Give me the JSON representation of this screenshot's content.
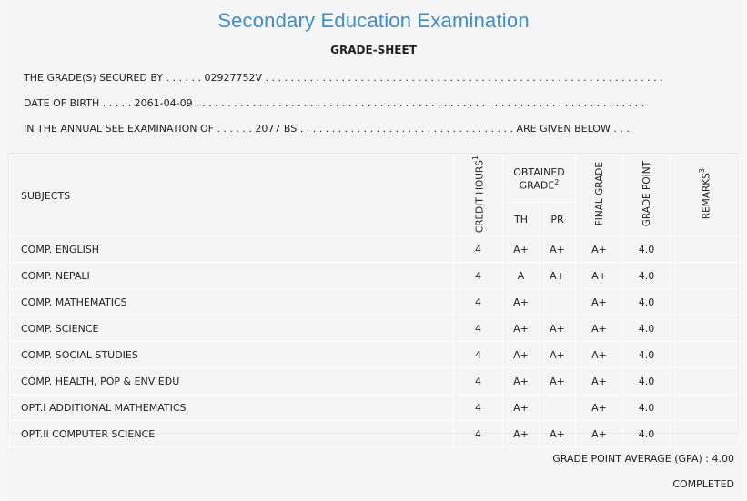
{
  "header": {
    "title": "Secondary Education Examination",
    "subtitle": "GRADE-SHEET"
  },
  "info": {
    "line1": "THE GRADE(S) SECURED BY . . . . . . 02927752V . . . . . . . . . . . . . . . . . . . . . . . . . . . . . . . . . . . . . . . . . . . . . . . . . . . . . . . . . . . . . . .",
    "line2": "DATE OF BIRTH . . . . . 2061-04-09 . . . . . . . . . . . . . . . . . . . . . . . . . . . . . . . . . . . . . . . . . . . . . . . . . . . . . . . . . . . . . . . . . . . . . . .",
    "line3": "IN THE ANNUAL SEE EXAMINATION OF . . . . . . 2077 BS . . . . . . . . . . . . . . . . . . . . . . . . . . . . . . . . . . ARE GIVEN BELOW . . ."
  },
  "table": {
    "headers": {
      "subjects": "SUBJECTS",
      "credit_hours": "CREDIT HOURS",
      "credit_sup": "1",
      "obtained_grade": "OBTAINED GRADE",
      "obtained_sup": "2",
      "th": "TH",
      "pr": "PR",
      "final_grade": "FINAL GRADE",
      "grade_point": "GRADE POINT",
      "remarks": "REMARKS",
      "remarks_sup": "3"
    },
    "rows": [
      {
        "subject": "COMP. ENGLISH",
        "credit": "4",
        "th": "A+",
        "pr": "A+",
        "final": "A+",
        "gp": "4.0",
        "remarks": ""
      },
      {
        "subject": "COMP. NEPALI",
        "credit": "4",
        "th": "A",
        "pr": "A+",
        "final": "A+",
        "gp": "4.0",
        "remarks": ""
      },
      {
        "subject": "COMP. MATHEMATICS",
        "credit": "4",
        "th": "A+",
        "pr": "",
        "final": "A+",
        "gp": "4.0",
        "remarks": ""
      },
      {
        "subject": "COMP. SCIENCE",
        "credit": "4",
        "th": "A+",
        "pr": "A+",
        "final": "A+",
        "gp": "4.0",
        "remarks": ""
      },
      {
        "subject": "COMP. SOCIAL STUDIES",
        "credit": "4",
        "th": "A+",
        "pr": "A+",
        "final": "A+",
        "gp": "4.0",
        "remarks": ""
      },
      {
        "subject": "COMP. HEALTH, POP & ENV EDU",
        "credit": "4",
        "th": "A+",
        "pr": "A+",
        "final": "A+",
        "gp": "4.0",
        "remarks": ""
      },
      {
        "subject": "OPT.I ADDITIONAL MATHEMATICS",
        "credit": "4",
        "th": "A+",
        "pr": "",
        "final": "A+",
        "gp": "4.0",
        "remarks": ""
      },
      {
        "subject": "OPT.II COMPUTER SCIENCE",
        "credit": "4",
        "th": "A+",
        "pr": "A+",
        "final": "A+",
        "gp": "4.0",
        "remarks": ""
      }
    ]
  },
  "footer": {
    "gpa": "GRADE POINT AVERAGE (GPA) : 4.00",
    "status": "COMPLETED"
  }
}
